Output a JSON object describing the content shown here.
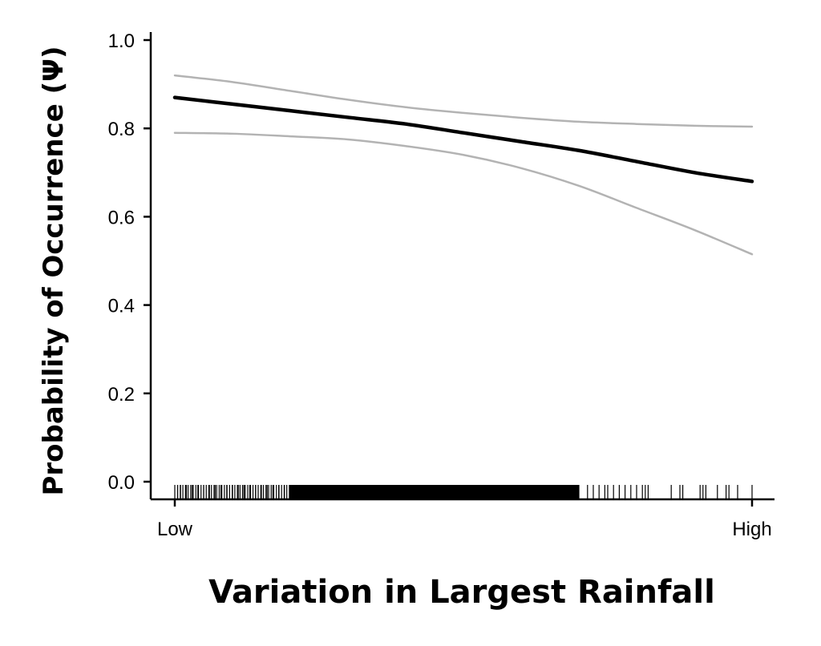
{
  "chart_data": {
    "type": "line",
    "title": "",
    "xlabel": "Variation in Largest Rainfall",
    "ylabel": "Probability of Occurrence (Ψ)",
    "ylim": [
      0,
      1.0
    ],
    "grid": false,
    "legend": null,
    "x_tick_labels": [
      "Low",
      "High"
    ],
    "y_ticks": [
      0.0,
      0.2,
      0.4,
      0.6,
      0.8,
      1.0
    ],
    "y_tick_labels": [
      "0.0",
      "0.2",
      "0.4",
      "0.6",
      "0.8",
      "1.0"
    ],
    "x": [
      0,
      0.1,
      0.2,
      0.3,
      0.4,
      0.5,
      0.6,
      0.7,
      0.8,
      0.9,
      1.0
    ],
    "series": [
      {
        "name": "mean",
        "color": "#000000",
        "values": [
          0.87,
          0.855,
          0.84,
          0.825,
          0.81,
          0.79,
          0.77,
          0.75,
          0.725,
          0.7,
          0.68
        ]
      },
      {
        "name": "upper_ci",
        "color": "#b3b3b3",
        "values": [
          0.92,
          0.905,
          0.885,
          0.865,
          0.848,
          0.835,
          0.824,
          0.815,
          0.81,
          0.806,
          0.804
        ]
      },
      {
        "name": "lower_ci",
        "color": "#b3b3b3",
        "values": [
          0.79,
          0.788,
          0.782,
          0.775,
          0.76,
          0.74,
          0.71,
          0.67,
          0.62,
          0.57,
          0.515
        ]
      }
    ],
    "rug": {
      "description": "Rug plot of observation locations along x-axis, dense from Low to ~70%, sparse beyond",
      "positions": [
        0.0,
        0.01,
        0.02,
        0.03,
        0.04,
        0.05,
        0.06,
        0.07,
        0.08,
        0.09,
        0.1,
        0.11,
        0.12,
        0.13,
        0.14,
        0.15,
        0.16,
        0.17,
        0.18,
        0.19,
        0.2,
        0.25,
        0.3,
        0.35,
        0.4,
        0.45,
        0.5,
        0.55,
        0.6,
        0.65,
        0.7,
        0.715,
        0.725,
        0.735,
        0.745,
        0.75,
        0.76,
        0.77,
        0.78,
        0.79,
        0.8,
        0.81,
        0.815,
        0.82,
        0.86,
        0.875,
        0.88,
        0.91,
        0.915,
        0.92,
        0.94,
        0.955,
        0.96,
        0.975,
        1.0
      ]
    }
  },
  "axes": {
    "x_title": "Variation in Largest Rainfall",
    "y_title": "Probability of Occurrence (Ψ)",
    "x_low": "Low",
    "x_high": "High",
    "y_labels": [
      "0.0",
      "0.2",
      "0.4",
      "0.6",
      "0.8",
      "1.0"
    ]
  },
  "colors": {
    "mean_line": "#000000",
    "ci_line": "#b3b3b3",
    "axis": "#000000"
  }
}
